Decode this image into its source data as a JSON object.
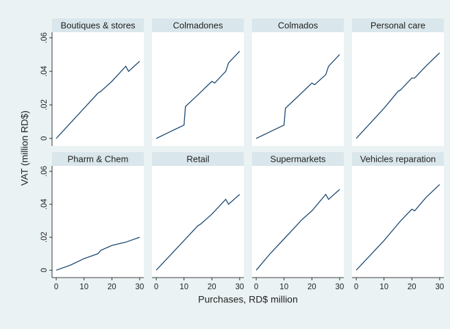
{
  "chart_data": {
    "type": "line",
    "ylabel": "VAT (million RD$)",
    "xlabel": "Purchases, RD$ million",
    "xlim": [
      -1.5,
      31.5
    ],
    "ylim": [
      -0.0045,
      0.0633
    ],
    "xticks": [
      0,
      10,
      20,
      30
    ],
    "yticks": [
      0,
      {
        "value": 0.02,
        "label": ".02"
      },
      {
        "value": 0.04,
        "label": ".04"
      },
      {
        "value": 0.06,
        "label": ".06"
      }
    ],
    "color": "#1a476f",
    "panels": [
      {
        "title": "Boutiques & stores",
        "x": [
          0,
          5,
          10,
          15,
          16,
          20,
          25,
          26,
          30
        ],
        "values": [
          0,
          0.009,
          0.018,
          0.027,
          0.028,
          0.034,
          0.043,
          0.04,
          0.046
        ]
      },
      {
        "title": "Colmadones",
        "x": [
          0,
          5,
          10,
          10.5,
          15,
          20,
          21,
          25,
          26,
          30
        ],
        "values": [
          0,
          0.004,
          0.008,
          0.019,
          0.026,
          0.034,
          0.033,
          0.04,
          0.045,
          0.052
        ]
      },
      {
        "title": "Colmados",
        "x": [
          0,
          5,
          10,
          10.5,
          15,
          20,
          21,
          25,
          26,
          30
        ],
        "values": [
          0,
          0.004,
          0.008,
          0.018,
          0.025,
          0.033,
          0.032,
          0.038,
          0.043,
          0.05
        ]
      },
      {
        "title": "Personal care",
        "x": [
          0,
          5,
          10,
          15,
          16,
          20,
          21,
          25,
          30
        ],
        "values": [
          0,
          0.009,
          0.018,
          0.028,
          0.029,
          0.036,
          0.036,
          0.043,
          0.051
        ]
      },
      {
        "title": "Pharm & Chem",
        "x": [
          0,
          5,
          10,
          15,
          16,
          20,
          25,
          30
        ],
        "values": [
          0,
          0.003,
          0.007,
          0.01,
          0.012,
          0.015,
          0.017,
          0.02
        ]
      },
      {
        "title": "Retail",
        "x": [
          0,
          5,
          10,
          15,
          16,
          20,
          25,
          26,
          30
        ],
        "values": [
          0,
          0.009,
          0.018,
          0.027,
          0.028,
          0.034,
          0.043,
          0.04,
          0.046
        ]
      },
      {
        "title": "Supermarkets",
        "x": [
          0,
          5,
          10,
          15,
          16,
          20,
          25,
          26,
          30
        ],
        "values": [
          0,
          0.01,
          0.019,
          0.028,
          0.03,
          0.036,
          0.046,
          0.043,
          0.049
        ]
      },
      {
        "title": "Vehicles reparation",
        "x": [
          0,
          5,
          10,
          15,
          16,
          20,
          21,
          25,
          30
        ],
        "values": [
          0,
          0.009,
          0.018,
          0.028,
          0.03,
          0.037,
          0.036,
          0.044,
          0.052
        ]
      }
    ]
  }
}
